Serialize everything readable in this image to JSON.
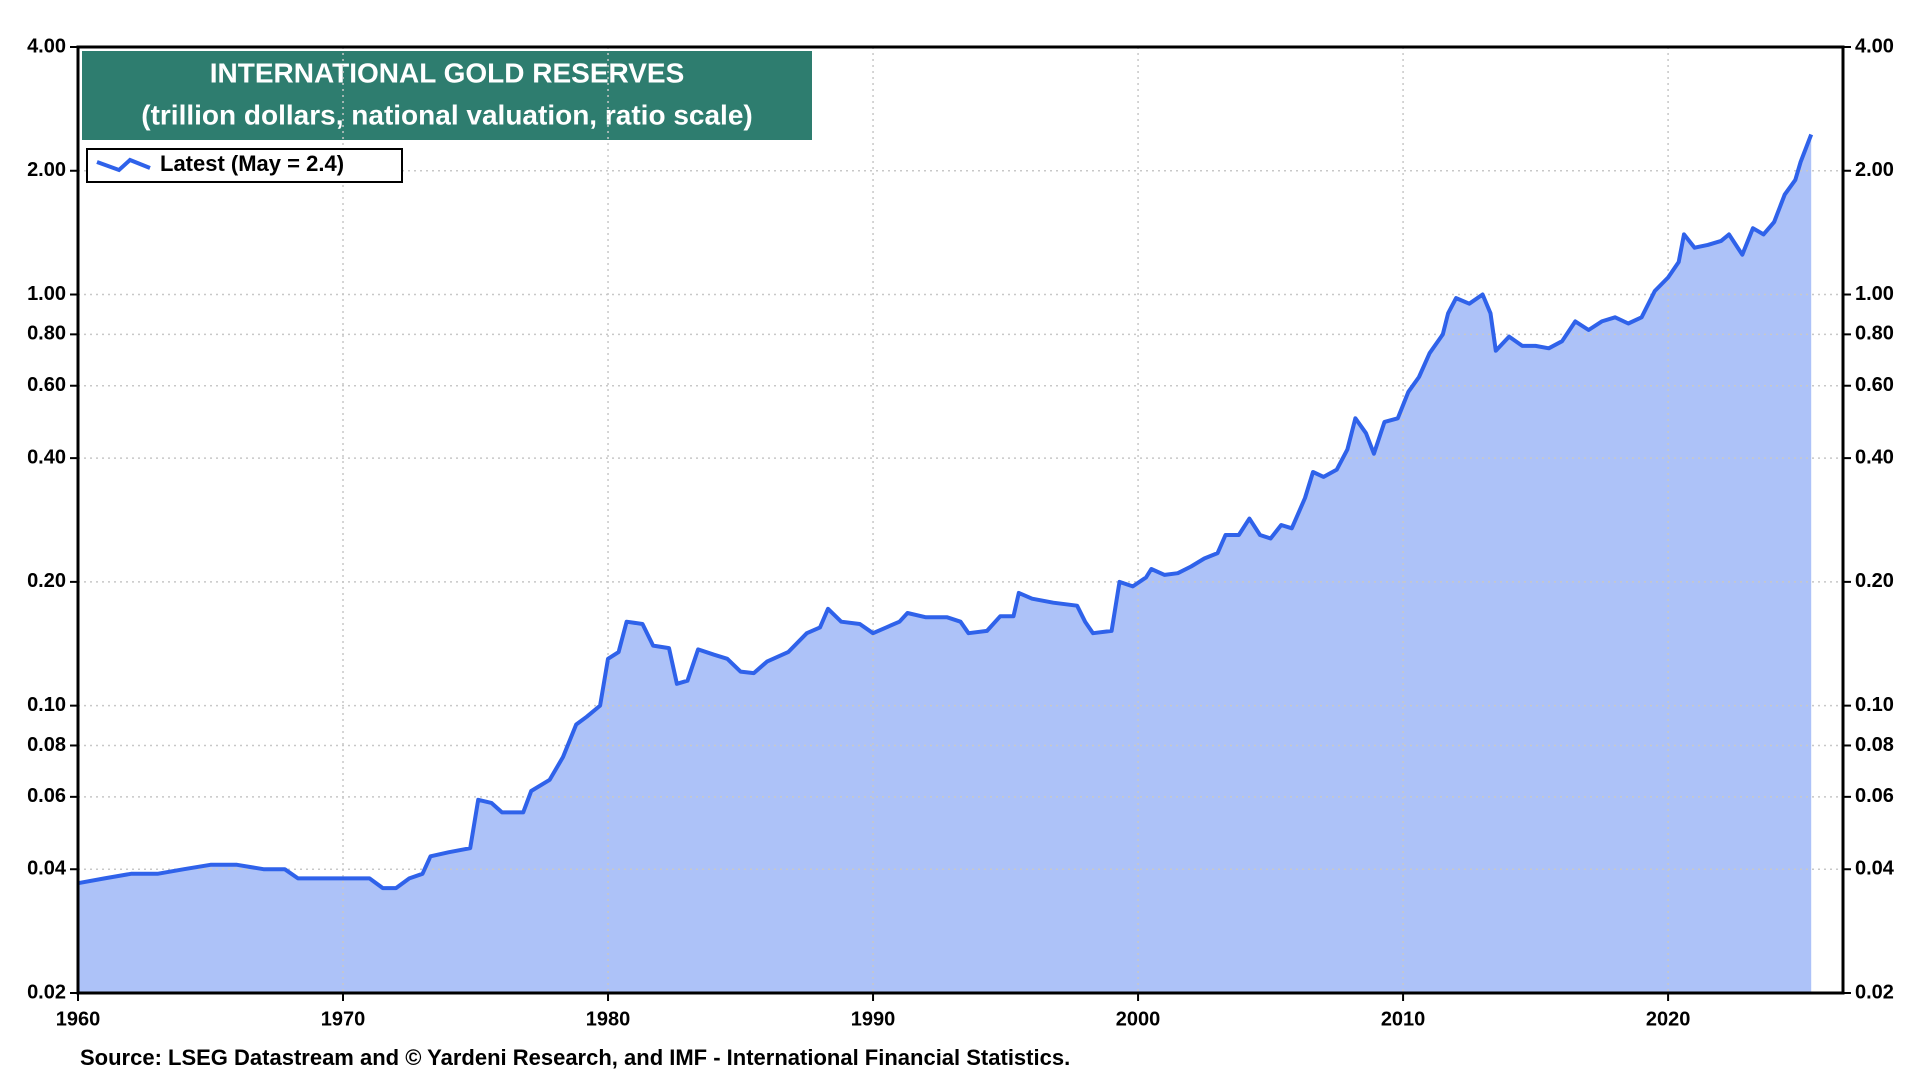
{
  "chart_data": {
    "type": "area",
    "title": "INTERNATIONAL GOLD RESERVES",
    "subtitle": "(trillion dollars, national valuation, ratio scale)",
    "source": "Source: LSEG Datastream and © Yardeni Research, and IMF - International Financial Statistics.",
    "log_scale": true,
    "grid": true,
    "legend": "upper left",
    "xlim": [
      1960,
      2026.6
    ],
    "xticks": [
      1960,
      1970,
      1980,
      1990,
      2000,
      2010,
      2020
    ],
    "ylim": [
      0.02,
      4
    ],
    "yticks": [
      {
        "value": 4,
        "label": "4.00"
      },
      {
        "value": 2,
        "label": "2.00"
      },
      {
        "value": 1,
        "label": "1.00"
      },
      {
        "value": 0.8,
        "label": "0.80"
      },
      {
        "value": 0.6,
        "label": "0.60"
      },
      {
        "value": 0.4,
        "label": "0.40"
      },
      {
        "value": 0.2,
        "label": "0.20"
      },
      {
        "value": 0.1,
        "label": "0.10"
      },
      {
        "value": 0.08,
        "label": "0.08"
      },
      {
        "value": 0.06,
        "label": "0.06"
      },
      {
        "value": 0.04,
        "label": "0.04"
      },
      {
        "value": 0.02,
        "label": "0.02"
      }
    ],
    "series": [
      {
        "name": "Latest (May = 2.4)",
        "color": "#2f62ea",
        "fill": "#adc2f8",
        "x": [
          1960,
          1961,
          1962,
          1963,
          1964,
          1965,
          1966,
          1967,
          1967.8,
          1968.3,
          1969,
          1970,
          1971,
          1971.5,
          1972,
          1972.5,
          1973,
          1973.3,
          1974,
          1974.8,
          1975.1,
          1975.6,
          1976,
          1976.8,
          1977.1,
          1977.8,
          1978.3,
          1978.8,
          1979.2,
          1979.7,
          1980,
          1980.4,
          1980.7,
          1981.3,
          1981.7,
          1982.3,
          1982.6,
          1983,
          1983.4,
          1984,
          1984.5,
          1985,
          1985.5,
          1986,
          1986.8,
          1987.5,
          1988,
          1988.3,
          1988.8,
          1989.5,
          1990,
          1990.5,
          1991,
          1991.3,
          1992,
          1992.8,
          1993.3,
          1993.6,
          1994.3,
          1994.8,
          1995.3,
          1995.5,
          1996,
          1996.8,
          1997.7,
          1998,
          1998.3,
          1999,
          1999.3,
          1999.8,
          2000.3,
          2000.5,
          2001,
          2001.5,
          2002,
          2002.5,
          2003,
          2003.3,
          2003.8,
          2004.2,
          2004.6,
          2005,
          2005.4,
          2005.8,
          2006.3,
          2006.6,
          2007,
          2007.5,
          2007.9,
          2008.2,
          2008.6,
          2008.9,
          2009.3,
          2009.8,
          2010.2,
          2010.6,
          2011,
          2011.5,
          2011.7,
          2012,
          2012.5,
          2013,
          2013.3,
          2013.5,
          2014,
          2014.5,
          2015,
          2015.5,
          2016,
          2016.5,
          2017,
          2017.5,
          2018,
          2018.5,
          2019,
          2019.5,
          2020,
          2020.4,
          2020.6,
          2021,
          2021.5,
          2022,
          2022.3,
          2022.8,
          2023.2,
          2023.6,
          2024,
          2024.4,
          2024.8,
          2025,
          2025.4
        ],
        "values": [
          0.037,
          0.038,
          0.039,
          0.039,
          0.04,
          0.041,
          0.041,
          0.04,
          0.04,
          0.038,
          0.038,
          0.038,
          0.038,
          0.036,
          0.036,
          0.038,
          0.039,
          0.043,
          0.044,
          0.045,
          0.059,
          0.058,
          0.055,
          0.055,
          0.062,
          0.066,
          0.075,
          0.09,
          0.094,
          0.1,
          0.13,
          0.135,
          0.16,
          0.158,
          0.14,
          0.138,
          0.113,
          0.115,
          0.137,
          0.133,
          0.13,
          0.121,
          0.12,
          0.128,
          0.135,
          0.15,
          0.155,
          0.172,
          0.16,
          0.158,
          0.15,
          0.155,
          0.16,
          0.168,
          0.164,
          0.164,
          0.16,
          0.15,
          0.152,
          0.165,
          0.165,
          0.188,
          0.182,
          0.178,
          0.175,
          0.16,
          0.15,
          0.152,
          0.2,
          0.195,
          0.205,
          0.215,
          0.208,
          0.21,
          0.218,
          0.228,
          0.235,
          0.26,
          0.26,
          0.285,
          0.26,
          0.255,
          0.275,
          0.27,
          0.32,
          0.37,
          0.36,
          0.375,
          0.42,
          0.5,
          0.46,
          0.41,
          0.49,
          0.5,
          0.58,
          0.63,
          0.72,
          0.8,
          0.9,
          0.98,
          0.95,
          1.0,
          0.9,
          0.73,
          0.79,
          0.75,
          0.75,
          0.74,
          0.77,
          0.86,
          0.82,
          0.86,
          0.88,
          0.85,
          0.88,
          1.02,
          1.1,
          1.2,
          1.4,
          1.3,
          1.32,
          1.35,
          1.4,
          1.25,
          1.45,
          1.4,
          1.5,
          1.75,
          1.9,
          2.1,
          2.45
        ]
      }
    ]
  }
}
